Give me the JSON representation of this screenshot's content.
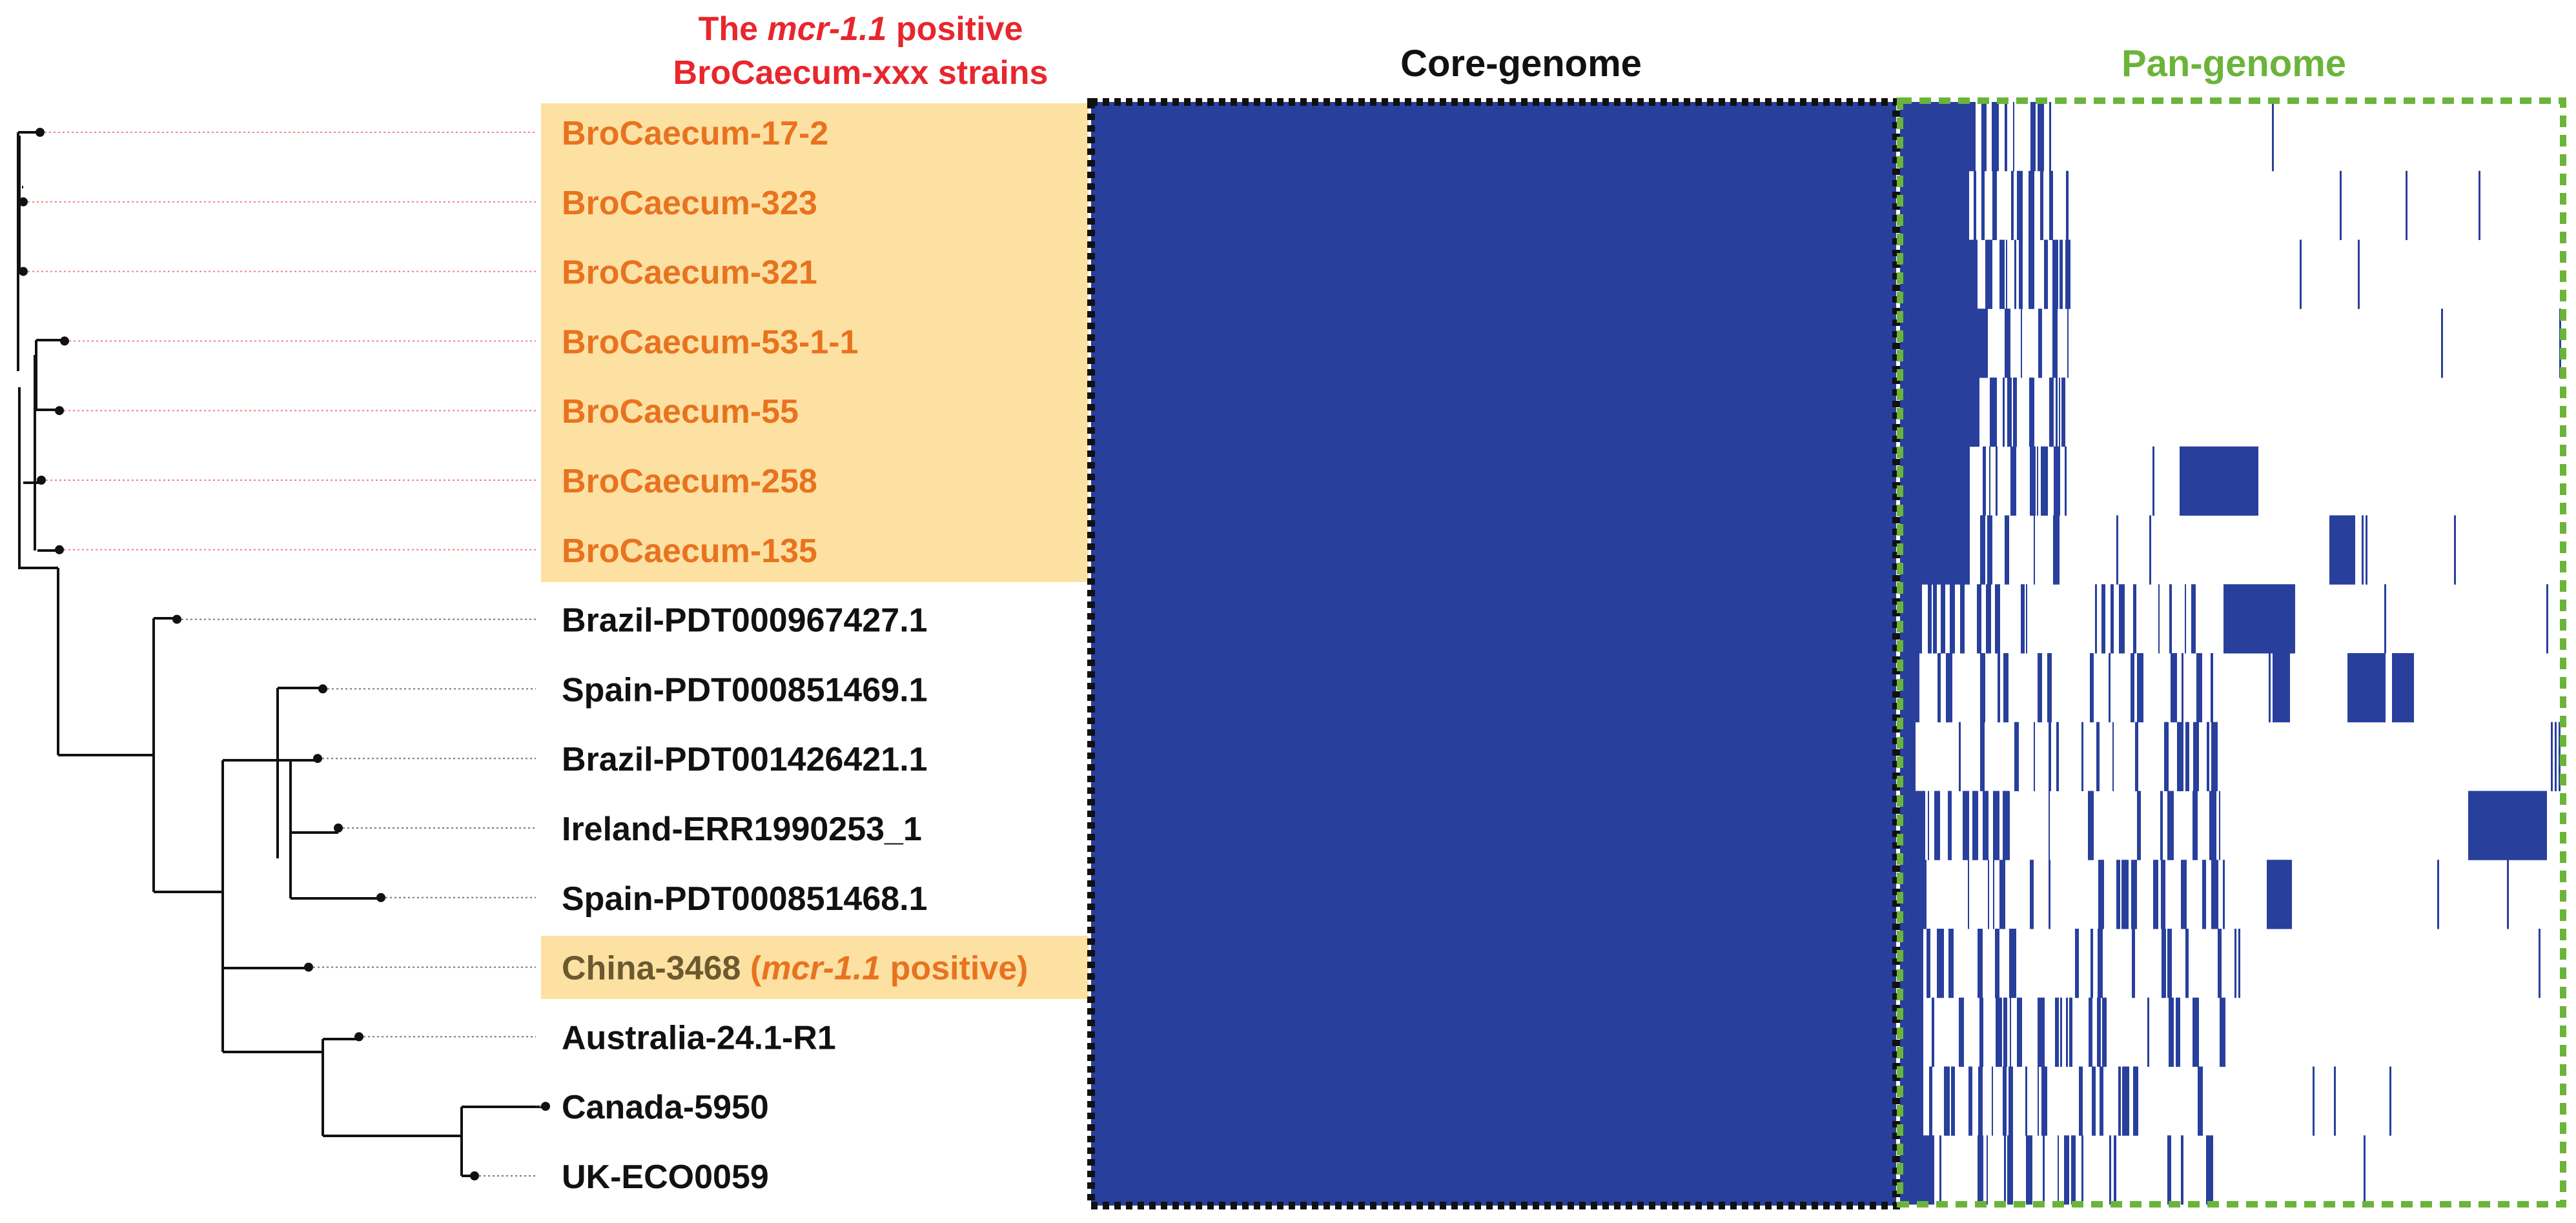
{
  "header": {
    "highlight_line1_prefix": "The ",
    "highlight_line1_italic": "mcr-1.1",
    "highlight_line1_suffix": " positive",
    "highlight_line2": "BroCaecum-xxx strains",
    "core_title": "Core-genome",
    "pan_title": "Pan-genome"
  },
  "colors": {
    "red_title": "#e8262d",
    "orange_label": "#e8731f",
    "highlight_fill": "#fde1a3",
    "matrix_blue": "#283f9c",
    "core_border": "#111111",
    "pan_border": "#6bb43a",
    "black": "#111111"
  },
  "strains": [
    {
      "label": "BroCaecum-17-2",
      "group": "mcr"
    },
    {
      "label": "BroCaecum-323",
      "group": "mcr"
    },
    {
      "label": "BroCaecum-321",
      "group": "mcr"
    },
    {
      "label": "BroCaecum-53-1-1",
      "group": "mcr"
    },
    {
      "label": "BroCaecum-55",
      "group": "mcr"
    },
    {
      "label": "BroCaecum-258",
      "group": "mcr"
    },
    {
      "label": "BroCaecum-135",
      "group": "mcr"
    },
    {
      "label": "Brazil-PDT000967427.1",
      "group": "other"
    },
    {
      "label": "Spain-PDT000851469.1",
      "group": "other"
    },
    {
      "label": "Brazil-PDT001426421.1",
      "group": "other"
    },
    {
      "label": "Ireland-ERR1990253_1",
      "group": "other"
    },
    {
      "label": "Spain-PDT000851468.1",
      "group": "other"
    },
    {
      "label": "China-3468",
      "group": "china",
      "note_open": " (",
      "note_italic": "mcr-1.1",
      "note_close": " positive)"
    },
    {
      "label": "Australia-24.1-R1",
      "group": "other"
    },
    {
      "label": "Canada-5950",
      "group": "other"
    },
    {
      "label": "UK-ECO0059",
      "group": "other"
    }
  ]
}
